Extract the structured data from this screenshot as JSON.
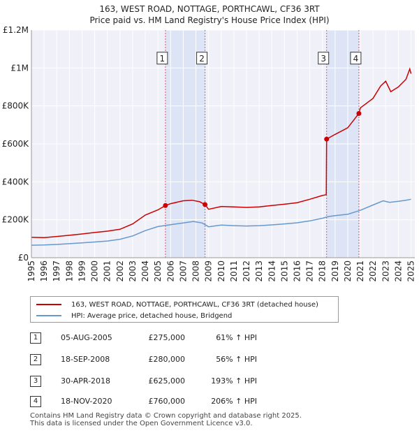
{
  "title_line1": "163, WEST ROAD, NOTTAGE, PORTHCAWL, CF36 3RT",
  "title_line2": "Price paid vs. HM Land Registry's House Price Index (HPI)",
  "chart_data": {
    "type": "line",
    "title": "163, WEST ROAD, NOTTAGE, PORTHCAWL, CF36 3RT",
    "subtitle": "Price paid vs. HM Land Registry's House Price Index (HPI)",
    "xlabel": "",
    "ylabel": "",
    "xlim": [
      1995,
      2025.3
    ],
    "ylim": [
      0,
      1200000
    ],
    "x_ticks": [
      1995,
      1996,
      1997,
      1998,
      1999,
      2000,
      2001,
      2002,
      2003,
      2004,
      2005,
      2006,
      2007,
      2008,
      2009,
      2010,
      2011,
      2012,
      2013,
      2014,
      2015,
      2016,
      2017,
      2018,
      2019,
      2020,
      2021,
      2022,
      2023,
      2024,
      2025
    ],
    "y_ticks": [
      {
        "value": 0,
        "label": "£0"
      },
      {
        "value": 200000,
        "label": "£200K"
      },
      {
        "value": 400000,
        "label": "£400K"
      },
      {
        "value": 600000,
        "label": "£600K"
      },
      {
        "value": 800000,
        "label": "£800K"
      },
      {
        "value": 1000000,
        "label": "£1M"
      },
      {
        "value": 1200000,
        "label": "£1.2M"
      }
    ],
    "grid": true,
    "shaded_periods": [
      {
        "from": 2005.59,
        "to": 2008.72
      },
      {
        "from": 2018.33,
        "to": 2020.88
      }
    ],
    "series": [
      {
        "name": "163, WEST ROAD, NOTTAGE, PORTHCAWL, CF36 3RT (detached house)",
        "color": "#cc0000",
        "points": [
          [
            1995,
            108000
          ],
          [
            1996,
            106000
          ],
          [
            1997,
            112000
          ],
          [
            1998,
            118000
          ],
          [
            1999,
            125000
          ],
          [
            2000,
            133000
          ],
          [
            2001,
            140000
          ],
          [
            2002,
            150000
          ],
          [
            2003,
            178000
          ],
          [
            2004,
            225000
          ],
          [
            2005,
            252000
          ],
          [
            2005.59,
            275000
          ],
          [
            2006,
            285000
          ],
          [
            2007,
            300000
          ],
          [
            2007.7,
            303000
          ],
          [
            2008.3,
            295000
          ],
          [
            2008.72,
            280000
          ],
          [
            2009,
            255000
          ],
          [
            2010,
            270000
          ],
          [
            2011,
            268000
          ],
          [
            2012,
            265000
          ],
          [
            2013,
            268000
          ],
          [
            2014,
            275000
          ],
          [
            2015,
            282000
          ],
          [
            2016,
            290000
          ],
          [
            2017,
            308000
          ],
          [
            2018,
            328000
          ],
          [
            2018.3,
            332000
          ],
          [
            2018.33,
            625000
          ],
          [
            2019,
            650000
          ],
          [
            2020,
            685000
          ],
          [
            2020.88,
            760000
          ],
          [
            2021,
            790000
          ],
          [
            2022,
            840000
          ],
          [
            2022.6,
            905000
          ],
          [
            2023,
            930000
          ],
          [
            2023.4,
            875000
          ],
          [
            2024,
            900000
          ],
          [
            2024.6,
            940000
          ],
          [
            2024.9,
            995000
          ],
          [
            2025,
            970000
          ]
        ]
      },
      {
        "name": "HPI: Average price, detached house, Bridgend",
        "color": "#6699cc",
        "points": [
          [
            1995,
            66000
          ],
          [
            1996,
            67000
          ],
          [
            1997,
            70000
          ],
          [
            1998,
            74000
          ],
          [
            1999,
            78000
          ],
          [
            2000,
            83000
          ],
          [
            2001,
            88000
          ],
          [
            2002,
            97000
          ],
          [
            2003,
            115000
          ],
          [
            2004,
            143000
          ],
          [
            2005,
            164000
          ],
          [
            2006,
            174000
          ],
          [
            2007,
            183000
          ],
          [
            2007.8,
            191000
          ],
          [
            2008.5,
            183000
          ],
          [
            2009,
            163000
          ],
          [
            2010,
            172000
          ],
          [
            2011,
            169000
          ],
          [
            2012,
            167000
          ],
          [
            2013,
            169000
          ],
          [
            2014,
            173000
          ],
          [
            2015,
            178000
          ],
          [
            2016,
            184000
          ],
          [
            2017,
            194000
          ],
          [
            2018,
            208000
          ],
          [
            2018.5,
            217000
          ],
          [
            2019,
            222000
          ],
          [
            2020,
            229000
          ],
          [
            2021,
            250000
          ],
          [
            2022,
            278000
          ],
          [
            2022.8,
            300000
          ],
          [
            2023.3,
            292000
          ],
          [
            2024,
            297000
          ],
          [
            2024.6,
            303000
          ],
          [
            2025,
            308000
          ]
        ]
      }
    ],
    "transactions": [
      {
        "num": "1",
        "year": 2005.59,
        "price": 275000
      },
      {
        "num": "2",
        "year": 2008.72,
        "price": 280000
      },
      {
        "num": "3",
        "year": 2018.33,
        "price": 625000
      },
      {
        "num": "4",
        "year": 2020.88,
        "price": 760000
      }
    ],
    "marker_label_value": 1050000
  },
  "legend": {
    "property_label": "163, WEST ROAD, NOTTAGE, PORTHCAWL, CF36 3RT (detached house)",
    "hpi_label": "HPI: Average price, detached house, Bridgend",
    "property_color": "#cc0000",
    "hpi_color": "#6699cc"
  },
  "transactions_table": [
    {
      "num": "1",
      "date": "05-AUG-2005",
      "price": "£275,000",
      "hpi": "61% ↑ HPI"
    },
    {
      "num": "2",
      "date": "18-SEP-2008",
      "price": "£280,000",
      "hpi": "56% ↑ HPI"
    },
    {
      "num": "3",
      "date": "30-APR-2018",
      "price": "£625,000",
      "hpi": "193% ↑ HPI"
    },
    {
      "num": "4",
      "date": "18-NOV-2020",
      "price": "£760,000",
      "hpi": "206% ↑ HPI"
    }
  ],
  "footer_line1": "Contains HM Land Registry data © Crown copyright and database right 2025.",
  "footer_line2": "This data is licensed under the Open Government Licence v3.0."
}
